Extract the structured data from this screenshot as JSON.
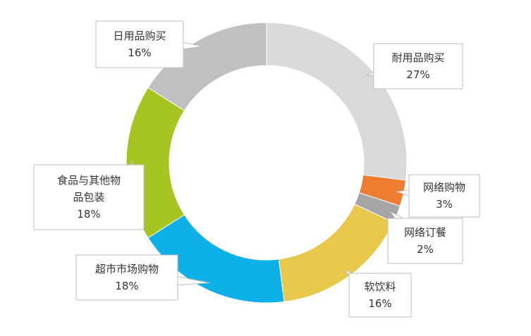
{
  "chart_data": {
    "type": "pie",
    "donut": true,
    "slices": [
      {
        "label": "耐用品购买",
        "value": 27,
        "value_label": "27%",
        "color": "#d9d9d9"
      },
      {
        "label": "网络购物",
        "value": 3,
        "value_label": "3%",
        "color": "#ed7d31"
      },
      {
        "label": "网络订餐",
        "value": 2,
        "value_label": "2%",
        "color": "#a5a5a5"
      },
      {
        "label": "软饮料",
        "value": 16,
        "value_label": "16%",
        "color": "#e8c84a"
      },
      {
        "label": "超市市场购物",
        "value": 18,
        "value_label": "18%",
        "color": "#0eb0e8"
      },
      {
        "label": "食品与其他物品包装",
        "value": 18,
        "value_label": "18%",
        "color": "#a6c520"
      },
      {
        "label": "日用品购买",
        "value": 16,
        "value_label": "16%",
        "color": "#c0c0c0"
      }
    ]
  }
}
